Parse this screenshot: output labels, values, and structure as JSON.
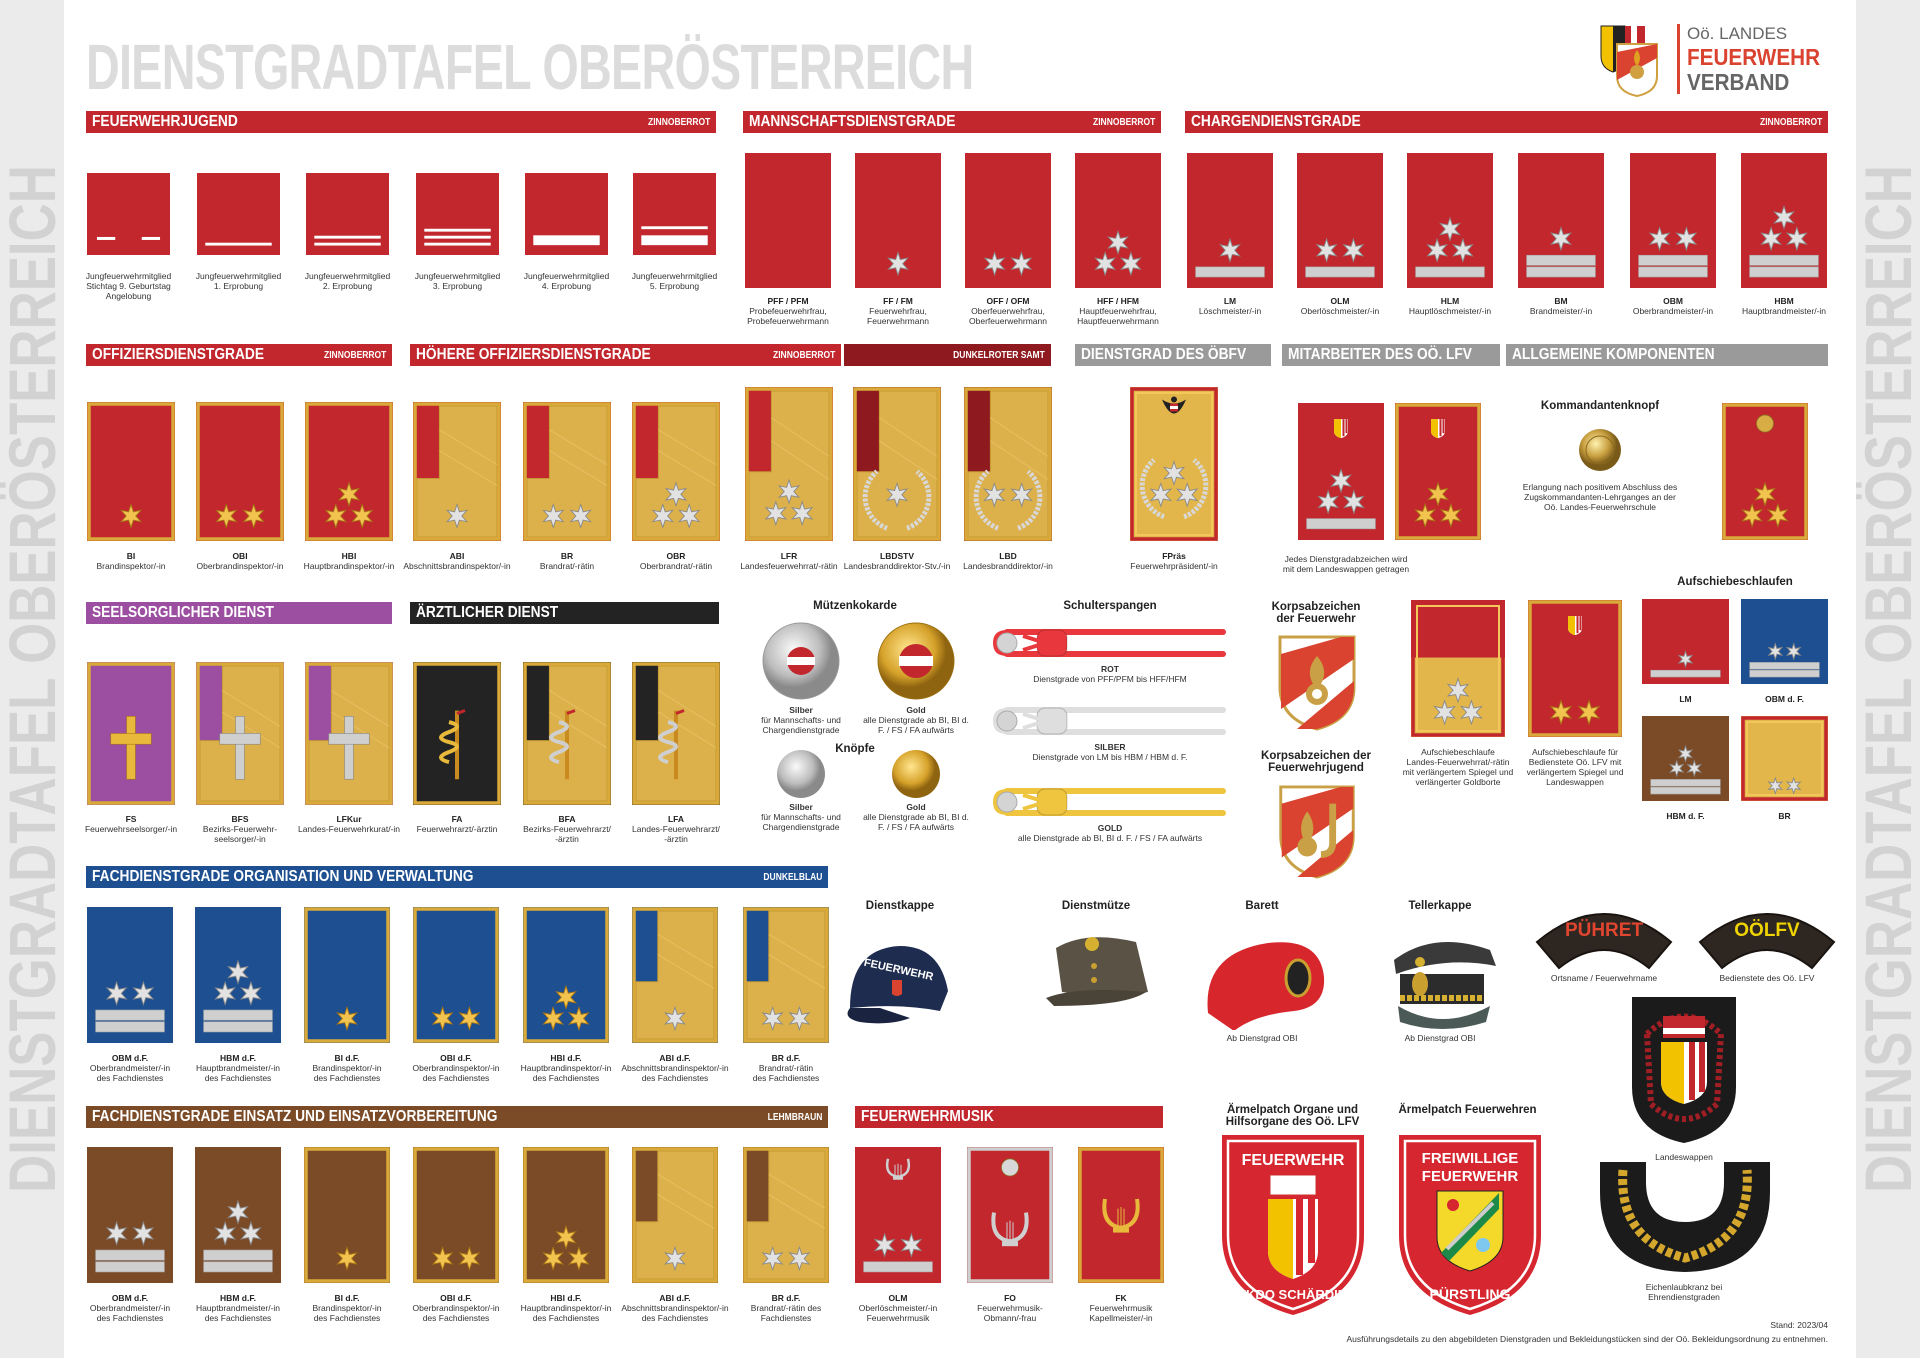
{
  "title": "DIENSTGRADTAFEL OBERÖSTERREICH",
  "side_text": "DIENSTGRADTAFEL OBERÖSTERREICH",
  "logo": {
    "line1": "Oö. LANDES",
    "line2": "FEUERWEHR",
    "line3": "VERBAND"
  },
  "colors": {
    "red": "#c1272d",
    "darkred": "#8e1a1f",
    "blue": "#1d4f91",
    "brown": "#7b4a26",
    "purple": "#9c4fa0",
    "black": "#232323",
    "gold": "#e2b64a",
    "gray": "#9a9a9a",
    "silver": "#d6d6d6"
  },
  "sections": [
    {
      "title": "FEUERWEHRJUGEND",
      "note": "ZINNOBERROT",
      "color": "#c1272d"
    },
    {
      "title": "MANNSCHAFTSDIENSTGRADE",
      "note": "ZINNOBERROT",
      "color": "#c1272d"
    },
    {
      "title": "CHARGENDIENSTGRADE",
      "note": "ZINNOBERROT",
      "color": "#c1272d"
    },
    {
      "title": "OFFIZIERSDIENSTGRADE",
      "note": "ZINNOBERROT",
      "color": "#c1272d"
    },
    {
      "title": "HÖHERE OFFIZIERSDIENSTGRADE",
      "note": "ZINNOBERROT",
      "color": "#c1272d"
    },
    {
      "title": "",
      "note": "DUNKELROTER SAMT",
      "color": "#8e1a1f"
    },
    {
      "title": "DIENSTGRAD DES ÖBFV",
      "note": "",
      "color": "#9a9a9a"
    },
    {
      "title": "MITARBEITER DES OÖ. LFV",
      "note": "",
      "color": "#9a9a9a"
    },
    {
      "title": "ALLGEMEINE KOMPONENTEN",
      "note": "",
      "color": "#9a9a9a"
    },
    {
      "title": "SEELSORGLICHER DIENST",
      "note": "",
      "color": "#9c4fa0"
    },
    {
      "title": "ÄRZTLICHER DIENST",
      "note": "",
      "color": "#232323"
    },
    {
      "title": "FACHDIENSTGRADE ORGANISATION UND VERWALTUNG",
      "note": "DUNKELBLAU",
      "color": "#1d4f91"
    },
    {
      "title": "FACHDIENSTGRADE EINSATZ UND EINSATZVORBEREITUNG",
      "note": "LEHMBRAUN",
      "color": "#7b4a26"
    },
    {
      "title": "FEUERWEHRMUSIK",
      "note": "",
      "color": "#c1272d"
    }
  ],
  "groups": {
    "jugend": {
      "items": [
        {
          "name": "Jungfeuerwehrmitglied\nStichtag 9. Geburtstag\nAngelobung",
          "badge": {
            "bg": "red",
            "dashes": 2
          }
        },
        {
          "name": "Jungfeuerwehrmitglied\n1. Erprobung",
          "badge": {
            "bg": "red",
            "lines": 1
          }
        },
        {
          "name": "Jungfeuerwehrmitglied\n2. Erprobung",
          "badge": {
            "bg": "red",
            "lines": 2
          }
        },
        {
          "name": "Jungfeuerwehrmitglied\n3. Erprobung",
          "badge": {
            "bg": "red",
            "lines": 3
          }
        },
        {
          "name": "Jungfeuerwehrmitglied\n4. Erprobung",
          "badge": {
            "bg": "red",
            "thick": 1
          }
        },
        {
          "name": "Jungfeuerwehrmitglied\n5. Erprobung",
          "badge": {
            "bg": "red",
            "thick": 1,
            "lines": 1
          }
        }
      ]
    },
    "mann": {
      "items": [
        {
          "abbr": "PFF / PFM",
          "name": "Probefeuerwehrfrau,\nProbefeuerwehrmann",
          "badge": {
            "bg": "red",
            "stars": 0
          }
        },
        {
          "abbr": "FF / FM",
          "name": "Feuerwehrfrau,\nFeuerwehrmann",
          "badge": {
            "bg": "red",
            "stars": 1,
            "star": "silver"
          }
        },
        {
          "abbr": "OFF / OFM",
          "name": "Oberfeuerwehrfrau,\nOberfeuerwehrmann",
          "badge": {
            "bg": "red",
            "stars": 2,
            "star": "silver"
          }
        },
        {
          "abbr": "HFF / HFM",
          "name": "Hauptfeuerwehrfrau,\nHauptfeuerwehrmann",
          "badge": {
            "bg": "red",
            "stars": 3,
            "star": "silver"
          }
        }
      ]
    },
    "charge": {
      "items": [
        {
          "abbr": "LM",
          "name": "Löschmeister/-in",
          "badge": {
            "bg": "red",
            "stars": 1,
            "star": "silver",
            "bars": 1
          }
        },
        {
          "abbr": "OLM",
          "name": "Oberlöschmeister/-in",
          "badge": {
            "bg": "red",
            "stars": 2,
            "star": "silver",
            "bars": 1
          }
        },
        {
          "abbr": "HLM",
          "name": "Hauptlöschmeister/-in",
          "badge": {
            "bg": "red",
            "stars": 3,
            "star": "silver",
            "bars": 1
          }
        },
        {
          "abbr": "BM",
          "name": "Brandmeister/-in",
          "badge": {
            "bg": "red",
            "stars": 1,
            "star": "silver",
            "bars": 2
          }
        },
        {
          "abbr": "OBM",
          "name": "Oberbrandmeister/-in",
          "badge": {
            "bg": "red",
            "stars": 2,
            "star": "silver",
            "bars": 2
          }
        },
        {
          "abbr": "HBM",
          "name": "Hauptbrandmeister/-in",
          "badge": {
            "bg": "red",
            "stars": 3,
            "star": "silver",
            "bars": 2
          }
        }
      ]
    },
    "offz": {
      "items": [
        {
          "abbr": "BI",
          "name": "Brandinspektor/-in",
          "badge": {
            "bg": "red",
            "frame": "gold",
            "stars": 1,
            "star": "gold"
          }
        },
        {
          "abbr": "OBI",
          "name": "Oberbrandinspektor/-in",
          "badge": {
            "bg": "red",
            "frame": "gold",
            "stars": 2,
            "star": "gold"
          }
        },
        {
          "abbr": "HBI",
          "name": "Hauptbrandinspektor/-in",
          "badge": {
            "bg": "red",
            "frame": "gold",
            "stars": 3,
            "star": "gold"
          }
        }
      ]
    },
    "hoeh": {
      "items": [
        {
          "abbr": "ABI",
          "name": "Abschnittsbrandinspektor/-in",
          "badge": {
            "bg": "red",
            "frame": "gold",
            "panel": true,
            "stars": 1,
            "star": "silver"
          }
        },
        {
          "abbr": "BR",
          "name": "Brandrat/-rätin",
          "badge": {
            "bg": "red",
            "frame": "gold",
            "panel": true,
            "stars": 2,
            "star": "silver"
          }
        },
        {
          "abbr": "OBR",
          "name": "Oberbrandrat/-rätin",
          "badge": {
            "bg": "red",
            "frame": "gold",
            "panel": true,
            "stars": 3,
            "star": "silver"
          }
        },
        {
          "abbr": "LFR",
          "name": "Landesfeuerwehrrat/-rätin",
          "badge": {
            "bg": "red",
            "frame": "gold",
            "panel": true,
            "stars": 3,
            "star": "silver"
          }
        }
      ]
    },
    "samt": {
      "items": [
        {
          "abbr": "LBDSTV",
          "name": "Landesbranddirektor-Stv./-in",
          "badge": {
            "bg": "darkred",
            "frame": "gold",
            "panel": true,
            "stars": 1,
            "star": "silver",
            "wreath": true
          }
        },
        {
          "abbr": "LBD",
          "name": "Landesbranddirektor/-in",
          "badge": {
            "bg": "darkred",
            "frame": "gold",
            "panel": true,
            "stars": 2,
            "star": "silver",
            "wreath": true
          }
        }
      ]
    },
    "oebfv": {
      "items": [
        {
          "abbr": "FPräs",
          "name": "Feuerwehrpräsident/-in",
          "badge": {
            "bg": "gold",
            "frame": "red",
            "stars": 3,
            "star": "silver",
            "wreath": true,
            "emblem": [
              "eagle"
            ]
          }
        }
      ]
    },
    "mitarb": {
      "note": "Jedes Dienstgradabzeichen wird\nmit dem Landeswappen getragen",
      "items": [
        {
          "badge": {
            "bg": "red",
            "stars": 3,
            "star": "silver",
            "bars": 1,
            "emblem": [
              "wappen"
            ]
          }
        },
        {
          "badge": {
            "bg": "red",
            "frame": "gold",
            "stars": 3,
            "star": "gold",
            "emblem": [
              "wappen"
            ]
          }
        }
      ]
    },
    "allg": {
      "title": "Kommandantenknopf",
      "note": "Erlangung nach positivem Abschluss des\nZugskommandanten-Lehrganges an der\nOö. Landes-Feuerwehrschule",
      "items": [
        {
          "badge": {
            "bg": "red",
            "frame": "gold",
            "stars": 3,
            "star": "gold",
            "emblem": [
              "button"
            ]
          }
        }
      ]
    },
    "seel": {
      "items": [
        {
          "abbr": "FS",
          "name": "Feuerwehrseelsorger/-in",
          "badge": {
            "bg": "purple",
            "frame": "gold",
            "emblem": [
              "cross"
            ],
            "emblem_color": "gold"
          }
        },
        {
          "abbr": "BFS",
          "name": "Bezirks-Feuerwehr-\nseelsorger/-in",
          "badge": {
            "bg": "purple",
            "frame": "gold",
            "panel": true,
            "emblem": [
              "cross"
            ],
            "emblem_color": "silver"
          }
        },
        {
          "abbr": "LFKur",
          "name": "Landes-Feuerwehrkurat/-in",
          "badge": {
            "bg": "purple",
            "frame": "gold",
            "panel": true,
            "emblem": [
              "cross"
            ],
            "emblem_color": "silver"
          }
        }
      ]
    },
    "arzt": {
      "items": [
        {
          "abbr": "FA",
          "name": "Feuerwehrarzt/-ärztin",
          "badge": {
            "bg": "black",
            "frame": "gold",
            "emblem": [
              "aesculap"
            ],
            "emblem_color": "gold"
          }
        },
        {
          "abbr": "BFA",
          "name": "Bezirks-Feuerwehrarzt/\n-ärztin",
          "badge": {
            "bg": "black",
            "frame": "gold",
            "panel": true,
            "emblem": [
              "aesculap"
            ],
            "emblem_color": "silver"
          }
        },
        {
          "abbr": "LFA",
          "name": "Landes-Feuerwehrarzt/\n-ärztin",
          "badge": {
            "bg": "black",
            "frame": "gold",
            "panel": true,
            "emblem": [
              "aesculap"
            ],
            "emblem_color": "silver"
          }
        }
      ]
    },
    "fach_org": {
      "items": [
        {
          "abbr": "OBM d.F.",
          "name": "Oberbrandmeister/-in\ndes Fachdienstes",
          "badge": {
            "bg": "blue",
            "stars": 2,
            "star": "silver",
            "bars": 2
          }
        },
        {
          "abbr": "HBM d.F.",
          "name": "Hauptbrandmeister/-in\ndes Fachdienstes",
          "badge": {
            "bg": "blue",
            "stars": 3,
            "star": "silver",
            "bars": 2
          }
        },
        {
          "abbr": "BI d.F.",
          "name": "Brandinspektor/-in\ndes Fachdienstes",
          "badge": {
            "bg": "blue",
            "frame": "gold",
            "stars": 1,
            "star": "gold"
          }
        },
        {
          "abbr": "OBI d.F.",
          "name": "Oberbrandinspektor/-in\ndes Fachdienstes",
          "badge": {
            "bg": "blue",
            "frame": "gold",
            "stars": 2,
            "star": "gold"
          }
        },
        {
          "abbr": "HBI d.F.",
          "name": "Hauptbrandinspektor/-in\ndes Fachdienstes",
          "badge": {
            "bg": "blue",
            "frame": "gold",
            "stars": 3,
            "star": "gold"
          }
        },
        {
          "abbr": "ABI d.F.",
          "name": "Abschnittsbrandinspektor/-in\ndes Fachdienstes",
          "badge": {
            "bg": "blue",
            "frame": "gold",
            "panel": true,
            "stars": 1,
            "star": "silver"
          }
        },
        {
          "abbr": "BR d.F.",
          "name": "Brandrat/-rätin\ndes Fachdienstes",
          "badge": {
            "bg": "blue",
            "frame": "gold",
            "panel": true,
            "stars": 2,
            "star": "silver"
          }
        }
      ]
    },
    "fach_eins": {
      "items": [
        {
          "abbr": "OBM d.F.",
          "name": "Oberbrandmeister/-in\ndes Fachdienstes",
          "badge": {
            "bg": "brown",
            "stars": 2,
            "star": "silver",
            "bars": 2
          }
        },
        {
          "abbr": "HBM d.F.",
          "name": "Hauptbrandmeister/-in\ndes Fachdienstes",
          "badge": {
            "bg": "brown",
            "stars": 3,
            "star": "silver",
            "bars": 2
          }
        },
        {
          "abbr": "BI d.F.",
          "name": "Brandinspektor/-in\ndes Fachdienstes",
          "badge": {
            "bg": "brown",
            "frame": "gold",
            "stars": 1,
            "star": "gold"
          }
        },
        {
          "abbr": "OBI d.F.",
          "name": "Oberbrandinspektor/-in\ndes Fachdienstes",
          "badge": {
            "bg": "brown",
            "frame": "gold",
            "stars": 2,
            "star": "gold"
          }
        },
        {
          "abbr": "HBI d.F.",
          "name": "Hauptbrandinspektor/-in\ndes Fachdienstes",
          "badge": {
            "bg": "brown",
            "frame": "gold",
            "stars": 3,
            "star": "gold"
          }
        },
        {
          "abbr": "ABI d.F.",
          "name": "Abschnittsbrandinspektor/-in\ndes Fachdienstes",
          "badge": {
            "bg": "brown",
            "frame": "gold",
            "panel": true,
            "stars": 1,
            "star": "silver"
          }
        },
        {
          "abbr": "BR d.F.",
          "name": "Brandrat/-rätin des\nFachdienstes",
          "badge": {
            "bg": "brown",
            "frame": "gold",
            "panel": true,
            "stars": 2,
            "star": "silver"
          }
        }
      ]
    },
    "musik": {
      "items": [
        {
          "abbr": "OLM",
          "name": "Oberlöschmeister/-in\nFeuerwehrmusik",
          "badge": {
            "bg": "red",
            "stars": 2,
            "star": "silver",
            "bars": 1,
            "emblem": [
              "lyre"
            ],
            "emblem_color": "silver"
          }
        },
        {
          "abbr": "FO",
          "name": "Feuerwehrmusik-\nObmann/-frau",
          "badge": {
            "bg": "red",
            "frame": "silver",
            "emblem": [
              "button",
              "lyre"
            ],
            "emblem_color": "silver"
          }
        },
        {
          "abbr": "FK",
          "name": "Feuerwehrmusik\nKapellmeister/-in",
          "badge": {
            "bg": "red",
            "frame": "gold",
            "emblem": [
              "lyre"
            ],
            "emblem_color": "gold"
          }
        }
      ]
    },
    "aufsch": {
      "title": "Aufschiebeschlaufen",
      "items": [
        {
          "abbr": "LM",
          "badge": {
            "bg": "red",
            "stars": 1,
            "star": "silver",
            "bars": 1
          }
        },
        {
          "abbr": "OBM d. F.",
          "badge": {
            "bg": "blue",
            "stars": 2,
            "star": "silver",
            "bars": 2
          }
        },
        {
          "abbr": "HBM d. F.",
          "badge": {
            "bg": "brown",
            "stars": 3,
            "star": "silver",
            "bars": 2
          }
        },
        {
          "abbr": "BR",
          "badge": {
            "bg": "gold",
            "frame": "red",
            "stars": 2,
            "star": "silver"
          }
        }
      ]
    },
    "aufsch_big": {
      "items": [
        {
          "name": "Aufschiebeschlaufe\nLandes-Feuerwehrrat/-rätin\nmit verlängertem Spiegel und\nverlängerter Goldborte",
          "badge": {
            "bg": "gold",
            "frame": "red",
            "top_red": true,
            "stars": 3,
            "star": "silver"
          }
        },
        {
          "name": "Aufschiebeschlaufe für\nBedienstete Oö. LFV mit\nverlängertem Spiegel und\nLandeswappen",
          "badge": {
            "bg": "red",
            "frame": "gold",
            "stars": 2,
            "star": "gold",
            "emblem": [
              "wappen"
            ]
          }
        }
      ]
    }
  },
  "kokarde": {
    "title": "Mützenkokarde",
    "silver_title": "Silber",
    "silver_text": "für Mannschafts- und\nChargendienstgrade",
    "gold_title": "Gold",
    "gold_text": "alle Dienstgrade ab BI, BI d.\nF. / FS / FA aufwärts"
  },
  "knoepfe": {
    "title": "Knöpfe",
    "silver_title": "Silber",
    "silver_text": "für Mannschafts- und\nChargendienstgrade",
    "gold_title": "Gold",
    "gold_text": "alle Dienstgrade ab BI, BI d.\nF. / FS / FA aufwärts"
  },
  "schulterspangen": {
    "title": "Schulterspangen",
    "items": [
      {
        "title": "ROT",
        "text": "Dienstgrade von PFF/PFM bis HFF/HFM",
        "color": "#e8383d"
      },
      {
        "title": "SILBER",
        "text": "Dienstgrade von LM bis HBM / HBM d. F.",
        "color": "#dedede"
      },
      {
        "title": "GOLD",
        "text": "alle Dienstgrade ab BI, BI d. F. / FS / FA aufwärts",
        "color": "#efc43e"
      }
    ]
  },
  "korps": {
    "fw": "Korpsabzeichen\nder Feuerwehr",
    "jugend": "Korpsabzeichen der\nFeuerwehrjugend"
  },
  "caps": [
    {
      "title": "Dienstkappe",
      "note": "",
      "print": "FEUERWEHR"
    },
    {
      "title": "Dienstmütze",
      "note": ""
    },
    {
      "title": "Barett",
      "note": "Ab Dienstgrad OBI"
    },
    {
      "title": "Tellerkappe",
      "note": "Ab Dienstgrad OBI"
    }
  ],
  "patches": [
    {
      "text": "PÜHRET",
      "note": "Ortsname / Feuerwehrname",
      "color": "#e0452f"
    },
    {
      "text": "OÖLFV",
      "note": "Bedienstete des Oö. LFV",
      "color": "#f0d400"
    }
  ],
  "landeswappen": {
    "note": "Landeswappen"
  },
  "eichenlaub": {
    "note": "Eichenlaubkranz bei\nEhrendienstgraden"
  },
  "aermel": [
    {
      "title": "Ärmelpatch Organe und\nHilfsorgane des Oö. LFV",
      "top": "FEUERWEHR",
      "bottom": "BFKDO SCHÄRDING"
    },
    {
      "title": "Ärmelpatch Feuerwehren",
      "top": "FREIWILLIGE",
      "top2": "FEUERWEHR",
      "bottom": "PÜRSTLING"
    }
  ],
  "footer": {
    "stand": "Stand: 2023/04",
    "text": "Ausführungsdetails zu den abgebildeten Dienstgraden und Bekleidungstücken sind der Oö. Bekleidungsordnung zu entnehmen."
  }
}
